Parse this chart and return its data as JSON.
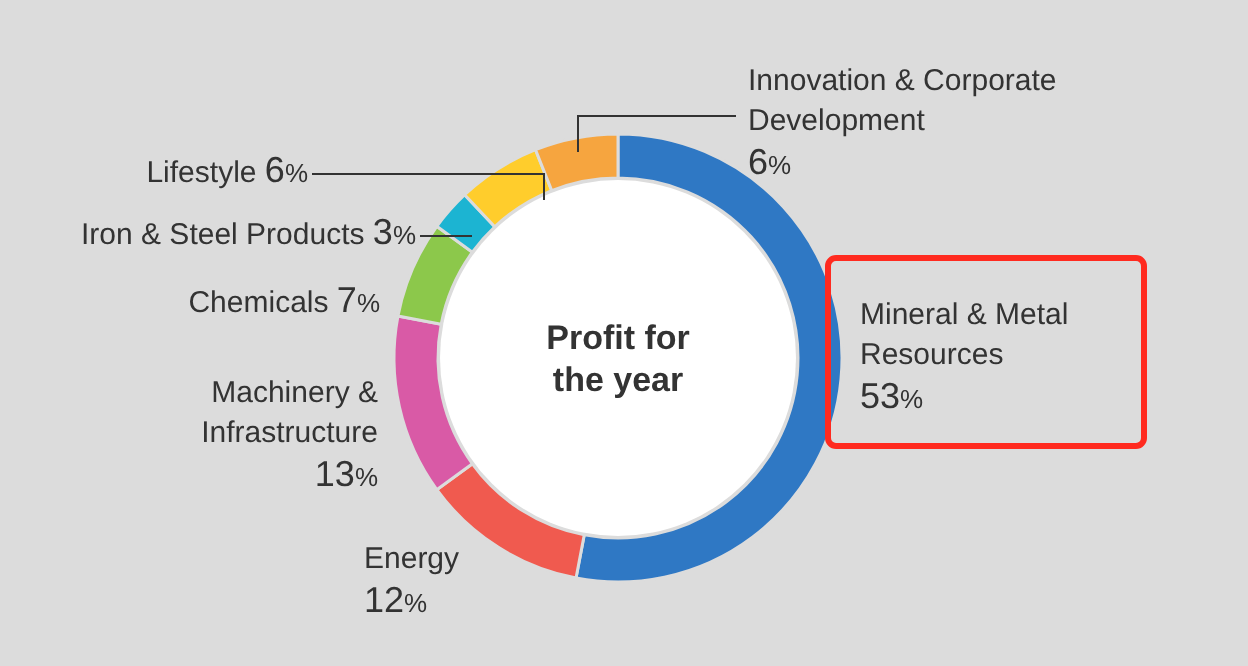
{
  "chart_data": {
    "type": "donut",
    "title": "Profit for the year",
    "categories": [
      "Mineral & Metal Resources",
      "Energy",
      "Machinery & Infrastructure",
      "Chemicals",
      "Iron & Steel Products",
      "Lifestyle",
      "Innovation & Corporate Development"
    ],
    "values": [
      53,
      12,
      13,
      7,
      3,
      6,
      6
    ],
    "value_labels": [
      "53%",
      "12%",
      "13%",
      "7%",
      "3%",
      "6%",
      "6%"
    ],
    "colors": [
      "#2f78c4",
      "#f05a4f",
      "#d95aa6",
      "#8cc84b",
      "#1cb4d2",
      "#ffcd2c",
      "#f6a53f"
    ]
  }
}
